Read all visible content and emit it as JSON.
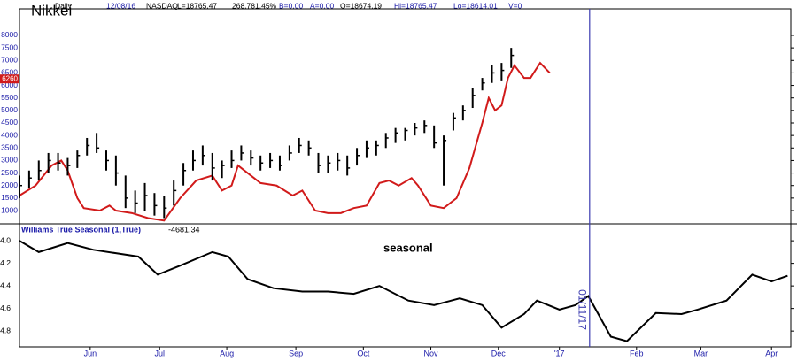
{
  "chart_data": [
    {
      "type": "ohlc",
      "title": "Nikkei",
      "header": [
        "Daily",
        "12/08/16",
        "NASDAQ",
        "L=18765.47",
        "268.78",
        "1.45%",
        "B=0.00",
        "A=0.00",
        "O=18674.19",
        "Hi=18765.47",
        "Lo=18614.01",
        "V=0"
      ],
      "x": [
        0,
        3,
        6,
        9,
        12,
        15,
        18,
        21,
        24,
        27,
        30,
        33,
        36,
        39,
        42,
        45,
        48,
        51,
        54,
        57,
        60,
        63,
        66,
        69,
        72,
        75,
        78,
        81,
        84,
        87,
        90,
        93,
        96,
        99,
        102,
        105,
        108,
        111,
        114,
        117,
        120,
        123,
        126,
        129,
        132,
        135,
        138,
        141,
        144,
        147,
        150,
        153
      ],
      "high": [
        2400,
        2600,
        3000,
        3300,
        3300,
        3100,
        3400,
        3900,
        4100,
        3400,
        3200,
        2400,
        1800,
        2100,
        1700,
        1600,
        2200,
        2900,
        3400,
        3600,
        3300,
        3000,
        3400,
        3600,
        3400,
        3200,
        3300,
        3200,
        3600,
        3900,
        3800,
        3300,
        3200,
        3300,
        3200,
        3500,
        3800,
        3800,
        4100,
        4300,
        4300,
        4500,
        4600,
        4400,
        4000,
        4900,
        5200,
        5900,
        6300,
        6800,
        6900,
        7500
      ],
      "low": [
        1500,
        1900,
        2200,
        2500,
        2600,
        2400,
        2700,
        3200,
        3300,
        2600,
        2000,
        1100,
        900,
        1000,
        800,
        700,
        1200,
        2000,
        2600,
        2800,
        2200,
        2300,
        2700,
        3000,
        2800,
        2600,
        2700,
        2600,
        3000,
        3300,
        3200,
        2500,
        2500,
        2600,
        2400,
        2800,
        3100,
        3200,
        3500,
        3700,
        3800,
        4000,
        4100,
        3500,
        2000,
        4200,
        4600,
        5100,
        5800,
        6100,
        6200,
        6700
      ],
      "close": [
        2000,
        2300,
        2600,
        3000,
        2900,
        2800,
        3200,
        3600,
        3500,
        3000,
        2500,
        1500,
        1300,
        1600,
        1200,
        1100,
        1800,
        2600,
        3000,
        3200,
        2700,
        2800,
        3000,
        3300,
        3100,
        2900,
        3000,
        2800,
        3300,
        3600,
        3500,
        2800,
        2900,
        3000,
        2700,
        3200,
        3500,
        3600,
        3900,
        4100,
        4200,
        4300,
        4400,
        3700,
        3800,
        4700,
        5000,
        5600,
        6100,
        6500,
        6600,
        7200
      ],
      "color": "#000000",
      "line": {
        "color": "#d11a1a",
        "marker_value": 6260,
        "x": [
          0,
          5,
          10,
          13,
          15,
          18,
          20,
          25,
          28,
          30,
          35,
          40,
          45,
          50,
          55,
          60,
          63,
          66,
          68,
          72,
          75,
          80,
          85,
          88,
          92,
          96,
          100,
          104,
          108,
          112,
          115,
          118,
          122,
          124,
          128,
          132,
          136,
          140,
          144,
          146,
          148,
          150,
          152,
          154,
          157,
          159,
          162,
          165
        ],
        "values": [
          1600,
          2000,
          2800,
          3000,
          2600,
          1500,
          1100,
          1000,
          1200,
          1000,
          900,
          700,
          600,
          1500,
          2200,
          2400,
          1800,
          2000,
          2800,
          2400,
          2100,
          2000,
          1600,
          1800,
          1000,
          900,
          900,
          1100,
          1200,
          2100,
          2200,
          2000,
          2300,
          2000,
          1200,
          1100,
          1500,
          2700,
          4500,
          5500,
          5000,
          5200,
          6300,
          6800,
          6300,
          6300,
          6900,
          6500
        ]
      },
      "xlim": [
        0,
        240
      ],
      "ylim": [
        470,
        9060
      ],
      "yticks": [
        1000,
        1500,
        2000,
        2500,
        3000,
        3500,
        4000,
        4500,
        5000,
        5500,
        6000,
        6500,
        7000,
        7500,
        8000
      ]
    },
    {
      "type": "line",
      "title": "Williams True Seasonal (1,True)",
      "current_value": -4681.34,
      "annotation": "seasonal",
      "x": [
        0,
        6,
        15,
        23,
        30,
        37,
        43,
        50,
        60,
        65,
        71,
        79,
        88,
        96,
        104,
        112,
        121,
        129,
        137,
        144,
        150,
        157,
        161,
        168,
        173,
        177,
        184,
        189,
        198,
        206,
        211,
        220,
        228,
        234,
        239
      ],
      "values": [
        4.0,
        4.1,
        4.02,
        4.08,
        4.11,
        4.14,
        4.3,
        4.22,
        4.1,
        4.14,
        4.34,
        4.42,
        4.45,
        4.45,
        4.47,
        4.4,
        4.53,
        4.57,
        4.51,
        4.57,
        4.77,
        4.65,
        4.53,
        4.61,
        4.57,
        4.49,
        4.85,
        4.89,
        4.64,
        4.65,
        4.61,
        4.53,
        4.3,
        4.36,
        4.31
      ],
      "color": "#000000",
      "vline": {
        "x": 177.4,
        "label": "01/11/17",
        "color": "#3b3bb0"
      },
      "xlim": [
        0,
        240
      ],
      "ylim": [
        3.85,
        4.94
      ],
      "y_inverted": true,
      "yticks": [
        {
          "value": 4,
          "label": "4.0"
        },
        {
          "value": 4.2,
          "label": "4.2"
        },
        {
          "value": 4.4,
          "label": "4.4"
        },
        {
          "value": 4.6,
          "label": "4.6"
        },
        {
          "value": 4.8,
          "label": "4.8"
        }
      ],
      "xticks": [
        {
          "value": 22,
          "label": "Jun"
        },
        {
          "value": 43.6,
          "label": "Jul"
        },
        {
          "value": 64.5,
          "label": "Aug"
        },
        {
          "value": 86,
          "label": "Sep"
        },
        {
          "value": 107,
          "label": "Oct"
        },
        {
          "value": 128,
          "label": "Nov"
        },
        {
          "value": 149,
          "label": "Dec"
        },
        {
          "value": 168,
          "label": "'17"
        },
        {
          "value": 192,
          "label": "Feb"
        },
        {
          "value": 212,
          "label": "Mar"
        },
        {
          "value": 234,
          "label": "Apr"
        }
      ]
    }
  ]
}
